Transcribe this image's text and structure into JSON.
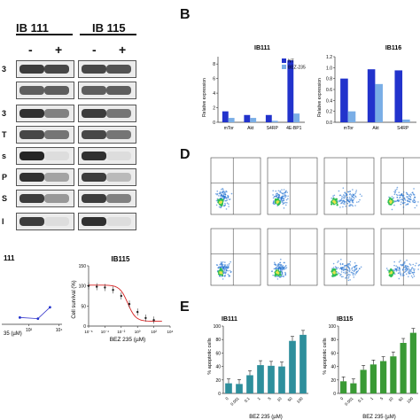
{
  "panels": {
    "b": "B",
    "d": "D",
    "e": "E"
  },
  "western_blot": {
    "group1_title": "IB 111",
    "group2_title": "IB 115",
    "signs": [
      "-",
      "+",
      "-",
      "+"
    ],
    "row_labels": [
      "3",
      "",
      "3",
      "T",
      "s",
      "P",
      "S",
      "I"
    ],
    "band_intensity": [
      [
        0.85,
        0.8,
        0.8,
        0.75
      ],
      [
        0.7,
        0.7,
        0.7,
        0.7
      ],
      [
        0.9,
        0.55,
        0.85,
        0.6
      ],
      [
        0.8,
        0.6,
        0.8,
        0.6
      ],
      [
        0.95,
        0.15,
        0.9,
        0.15
      ],
      [
        0.9,
        0.4,
        0.85,
        0.3
      ],
      [
        0.85,
        0.45,
        0.85,
        0.55
      ],
      [
        0.85,
        0.15,
        0.9,
        0.15
      ]
    ]
  },
  "chart_data": [
    {
      "type": "bar",
      "title": "IB111",
      "ylabel": "Relative expression",
      "categories": [
        "mTor",
        "Akt",
        "S4RP",
        "4E-BP1"
      ],
      "ylim": [
        0,
        9
      ],
      "yticks": [
        "0",
        "2",
        "4",
        "6",
        "8"
      ],
      "legend": [
        "NT",
        "BEZ-235"
      ],
      "legend_position": "top-right",
      "colors": [
        "#2233cc",
        "#7aaee6"
      ],
      "series": [
        {
          "name": "NT",
          "values": [
            1.5,
            1.0,
            1.0,
            8.5
          ]
        },
        {
          "name": "BEZ-235",
          "values": [
            0.6,
            0.6,
            0.2,
            1.2
          ]
        }
      ]
    },
    {
      "type": "bar",
      "title": "IB116",
      "ylabel": "Relative expression",
      "categories": [
        "mTor",
        "Akt",
        "S4RP"
      ],
      "ylim": [
        0,
        1.2
      ],
      "yticks": [
        "0.0",
        "0.2",
        "0.4",
        "0.6",
        "0.8",
        "1.0",
        "1.2"
      ],
      "colors": [
        "#2233cc",
        "#7aaee6"
      ],
      "series": [
        {
          "name": "NT",
          "values": [
            0.8,
            0.97,
            0.95
          ]
        },
        {
          "name": "BEZ-235",
          "values": [
            0.2,
            0.7,
            0.05
          ]
        }
      ]
    },
    {
      "type": "scatter",
      "title": "111",
      "xlabel": "35 (µM)",
      "xticks": [
        "10²",
        "10⁴"
      ],
      "points": [
        [
          0.3,
          0.12
        ],
        [
          0.6,
          0.1
        ],
        [
          0.8,
          0.3
        ]
      ]
    },
    {
      "type": "line",
      "title": "IB115",
      "xlabel": "BEZ 235 (µM)",
      "ylabel": "Cell survival (%)",
      "xticks": [
        "10⁻⁶",
        "10⁻⁴",
        "10⁻²",
        "10⁰",
        "10²",
        "10⁴"
      ],
      "yticks": [
        "0",
        "50",
        "100",
        "150"
      ],
      "ylim": [
        0,
        150
      ],
      "x_log10": [
        -6,
        -5,
        -4,
        -3,
        -2,
        -1,
        0,
        1,
        2
      ],
      "y": [
        100,
        98,
        96,
        90,
        75,
        55,
        35,
        20,
        15
      ]
    },
    {
      "type": "bar",
      "title": "IB111",
      "xlabel": "BEZ 235 (µM)",
      "ylabel": "% apoptotic cells",
      "categories": [
        "0",
        "0.001",
        "0.1",
        "1",
        "5",
        "10",
        "50",
        "100"
      ],
      "ylim": [
        0,
        100
      ],
      "yticks": [
        "0",
        "20",
        "40",
        "60",
        "80",
        "100"
      ],
      "color": "#2e8f9c",
      "values": [
        15,
        14,
        27,
        42,
        41,
        40,
        78,
        87
      ]
    },
    {
      "type": "bar",
      "title": "IB115",
      "xlabel": "BEZ 235 (µM)",
      "ylabel": "% apoptotic cells",
      "categories": [
        "0",
        "0.001",
        "0.1",
        "1",
        "5",
        "10",
        "50",
        "100"
      ],
      "ylim": [
        0,
        100
      ],
      "yticks": [
        "0",
        "20",
        "40",
        "60",
        "80",
        "100"
      ],
      "color": "#3a9a35",
      "values": [
        18,
        15,
        35,
        43,
        48,
        55,
        75,
        90
      ]
    }
  ],
  "flow": {
    "colors": [
      "#1f6fd1",
      "#2fbf55",
      "#e6e34a",
      "#d94a2a"
    ]
  }
}
